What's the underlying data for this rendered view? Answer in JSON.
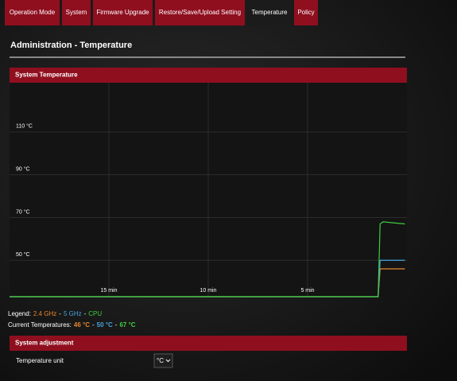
{
  "tabs": {
    "items": [
      "Operation Mode",
      "System",
      "Firmware Upgrade",
      "Restore/Save/Upload Setting",
      "Temperature",
      "Policy"
    ],
    "active": 4
  },
  "page_title": "Administration - Temperature",
  "system_temperature": {
    "title": "System Temperature",
    "chart": {
      "type": "line",
      "x": [
        20,
        1.45,
        1.35,
        1.2,
        0.1
      ],
      "xlim": [
        20,
        0
      ],
      "xticks": [
        {
          "value": 15,
          "label": "15 min"
        },
        {
          "value": 10,
          "label": "10 min"
        },
        {
          "value": 5,
          "label": "5 min"
        }
      ],
      "ylim": [
        33,
        133
      ],
      "yticks": [
        {
          "value": 110,
          "label": "110 °C"
        },
        {
          "value": 90,
          "label": "90 °C"
        },
        {
          "value": 70,
          "label": "70 °C"
        },
        {
          "value": 50,
          "label": "50 °C"
        }
      ],
      "series": [
        {
          "name": "2.4 GHz",
          "color": "#e8862a",
          "values": [
            33,
            33,
            46,
            46,
            46
          ]
        },
        {
          "name": "5 GHz",
          "color": "#46a4e0",
          "values": [
            33,
            33,
            50,
            50,
            50
          ]
        },
        {
          "name": "CPU",
          "color": "#3fcf3f",
          "values": [
            33,
            33,
            67,
            68,
            67
          ]
        }
      ],
      "grid": true
    },
    "legend_label": "Legend:",
    "separator": "-",
    "current_label": "Current Temperatures:",
    "current_values": [
      "46 °C",
      "50 °C",
      "67 °C"
    ]
  },
  "system_adjustment": {
    "title": "System adjustment",
    "label": "Temperature unit",
    "value": "°C"
  }
}
